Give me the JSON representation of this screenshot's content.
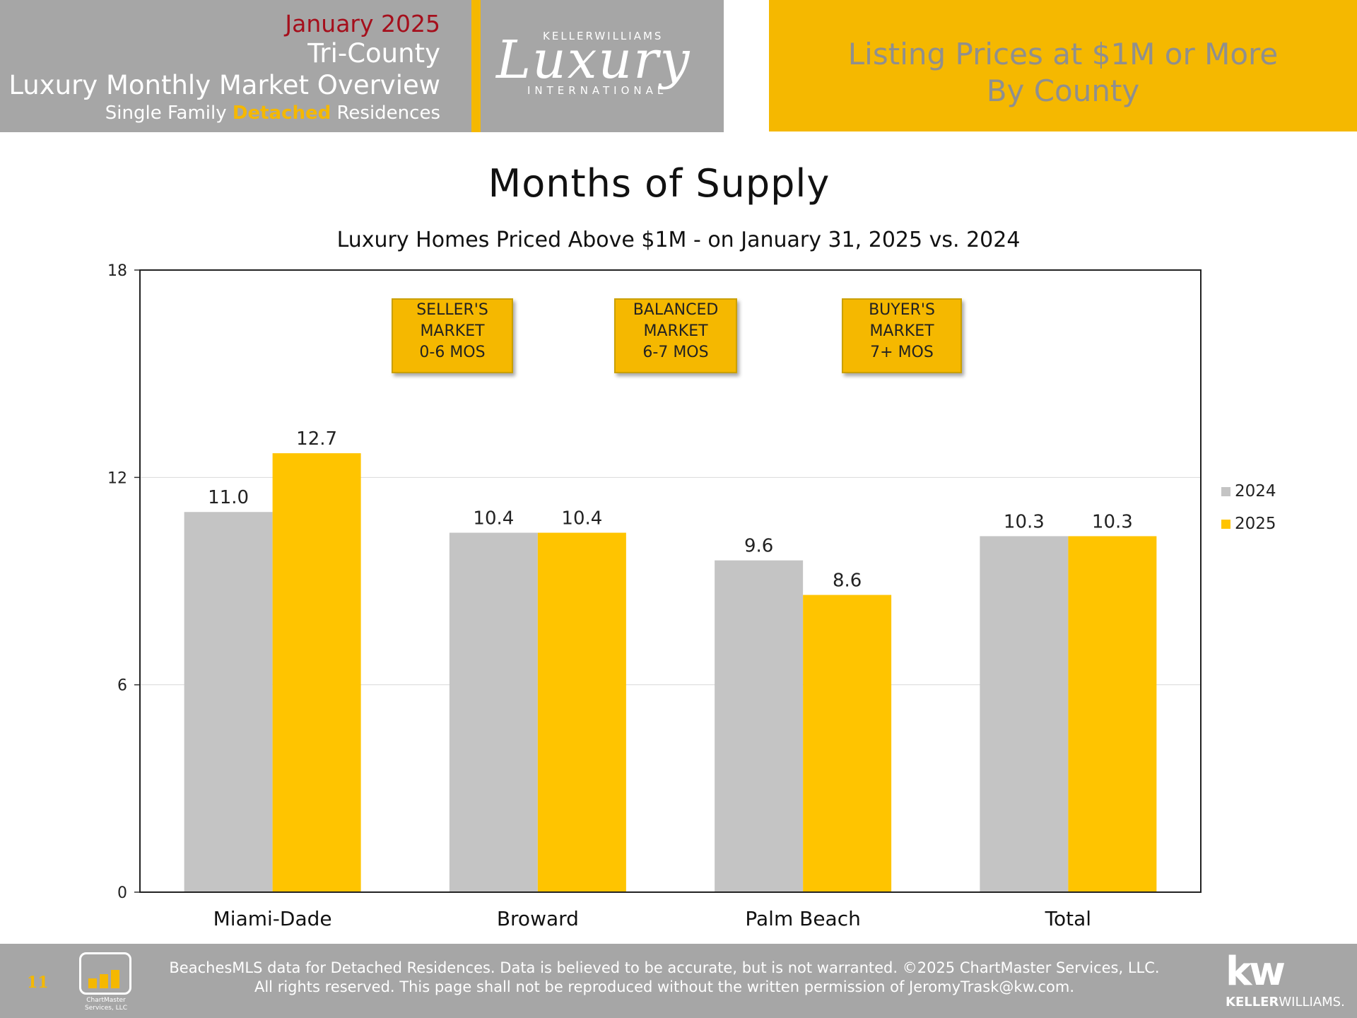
{
  "header": {
    "date": "January 2025",
    "region": "Tri-County",
    "report": "Luxury Monthly Market Overview",
    "segment_pre": "Single Family ",
    "segment_highlight": "Detached",
    "segment_post": " Residences",
    "logo_top": "KELLERWILLIAMS",
    "logo_main": "Luxury",
    "logo_bottom": "INTERNATIONAL",
    "right_line1": "Listing Prices at $1M or More",
    "right_line2": "By County"
  },
  "annotations": [
    {
      "lines": [
        "SELLER'S",
        "MARKET",
        "0-6 MOS"
      ]
    },
    {
      "lines": [
        "BALANCED",
        "MARKET",
        "6-7 MOS"
      ]
    },
    {
      "lines": [
        "BUYER'S",
        "MARKET",
        "7+ MOS"
      ]
    }
  ],
  "chart_data": {
    "type": "bar",
    "title": "Months of Supply",
    "subtitle": "Luxury Homes Priced Above $1M - on January 31,  2025 vs. 2024",
    "categories": [
      "Miami-Dade",
      "Broward",
      "Palm Beach",
      "Total"
    ],
    "series": [
      {
        "name": "2024",
        "values": [
          11.0,
          10.4,
          9.6,
          10.3
        ],
        "labels": [
          "11.0",
          "10.4",
          "9.6",
          "10.3"
        ],
        "color": "#c4c4c4"
      },
      {
        "name": "2025",
        "values": [
          12.7,
          10.4,
          8.6,
          10.3
        ],
        "labels": [
          "12.7",
          "10.4",
          "8.6",
          "10.3"
        ],
        "color": "#ffc400"
      }
    ],
    "ylim": [
      0,
      18
    ],
    "yticks": [
      0,
      6,
      12,
      18
    ],
    "grid": true,
    "legend_position": "right"
  },
  "footer": {
    "page_number": "11",
    "logo_text_line1": "ChartMaster",
    "logo_text_line2": "Services, LLC",
    "line1": "BeachesMLS data for Detached Residences.  Data is believed to be accurate, but is not warranted.   ©2025  ChartMaster Services, LLC.",
    "line2": "All rights reserved. This page shall not be reproduced without the written permission of JeromyTrask@kw.com.",
    "kw_mark": "kw",
    "kw_name_bold": "KELLER",
    "kw_name": "WILLIAMS."
  },
  "colors": {
    "gold": "#f5b800",
    "gray": "#a6a6a6",
    "accent_red": "#a50f1c"
  }
}
